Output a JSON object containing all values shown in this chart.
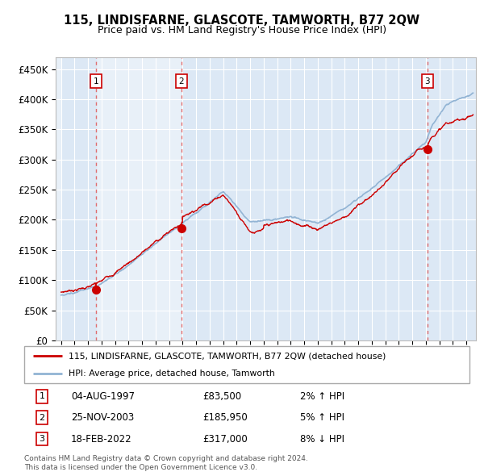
{
  "title": "115, LINDISFARNE, GLASCOTE, TAMWORTH, B77 2QW",
  "subtitle": "Price paid vs. HM Land Registry's House Price Index (HPI)",
  "legend_line1": "115, LINDISFARNE, GLASCOTE, TAMWORTH, B77 2QW (detached house)",
  "legend_line2": "HPI: Average price, detached house, Tamworth",
  "footer1": "Contains HM Land Registry data © Crown copyright and database right 2024.",
  "footer2": "This data is licensed under the Open Government Licence v3.0.",
  "transactions": [
    {
      "num": 1,
      "date": "04-AUG-1997",
      "price": "£83,500",
      "year": 1997.58,
      "hpi_pct": "2% ↑ HPI"
    },
    {
      "num": 2,
      "date": "25-NOV-2003",
      "price": "£185,950",
      "year": 2003.9,
      "hpi_pct": "5% ↑ HPI"
    },
    {
      "num": 3,
      "date": "18-FEB-2022",
      "price": "£317,000",
      "year": 2022.12,
      "hpi_pct": "8% ↓ HPI"
    }
  ],
  "trans_prices": [
    83500,
    185950,
    317000
  ],
  "trans_years": [
    1997.58,
    2003.9,
    2022.12
  ],
  "hpi_color": "#92b4d4",
  "price_color": "#cc0000",
  "dashed_color": "#e06060",
  "marker_color": "#cc0000",
  "band_color": "#dce8f5",
  "bg_color": "#e8f0f8",
  "grid_color": "#ffffff",
  "box_color": "#cc0000",
  "ylim": [
    0,
    470000
  ],
  "yticks": [
    0,
    50000,
    100000,
    150000,
    200000,
    250000,
    300000,
    350000,
    400000,
    450000
  ],
  "xstart": 1995,
  "xend": 2025
}
